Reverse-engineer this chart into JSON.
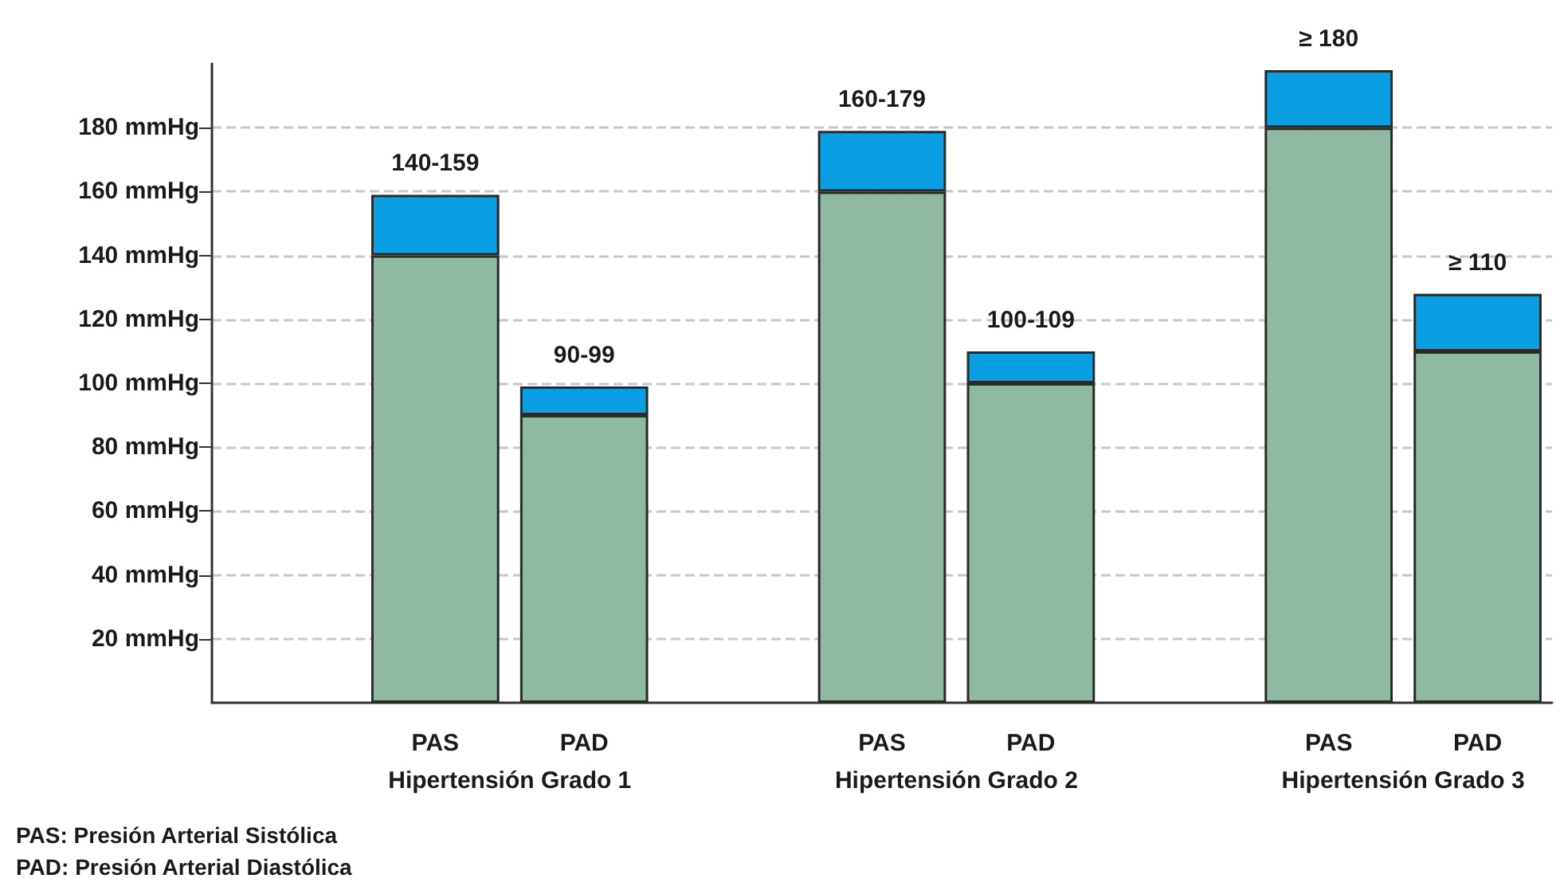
{
  "chart_data": {
    "type": "bar",
    "stacked": true,
    "categories": [
      null,
      "PAS",
      "PAD",
      null,
      "PAS",
      "PAD",
      null,
      "PAS",
      "PAD"
    ],
    "series": [
      {
        "color": "#8fbaa1",
        "values": [
          null,
          140,
          90,
          null,
          160,
          100,
          null,
          180,
          110
        ]
      },
      {
        "color": "#0a9fe2",
        "values": [
          null,
          19,
          9,
          null,
          19,
          10,
          null,
          18,
          18
        ],
        "value_labels": [
          null,
          "140-159",
          "90-99",
          null,
          "160-179",
          "100-109",
          null,
          "≥ 180",
          "≥ 110"
        ]
      }
    ],
    "ylim": [
      0,
      200
    ],
    "yticks": [
      {
        "value": 20,
        "label": "20 mmHg"
      },
      {
        "value": 40,
        "label": "40 mmHg"
      },
      {
        "value": 60,
        "label": "60 mmHg"
      },
      {
        "value": 80,
        "label": "80 mmHg"
      },
      {
        "value": 100,
        "label": "100 mmHg"
      },
      {
        "value": 120,
        "label": "120 mmHg"
      },
      {
        "value": 140,
        "label": "140 mmHg"
      },
      {
        "value": 160,
        "label": "160 mmHg"
      },
      {
        "value": 180,
        "label": "180 mmHg"
      }
    ],
    "grid": "y",
    "annotations": [
      "Hipertensión Grado 1",
      "Hipertensión Grado 2",
      "Hipertensión Grado 3",
      "PAS: Presión Arterial Sistólica",
      "PAD: Presión Arterial Diastólica"
    ]
  }
}
